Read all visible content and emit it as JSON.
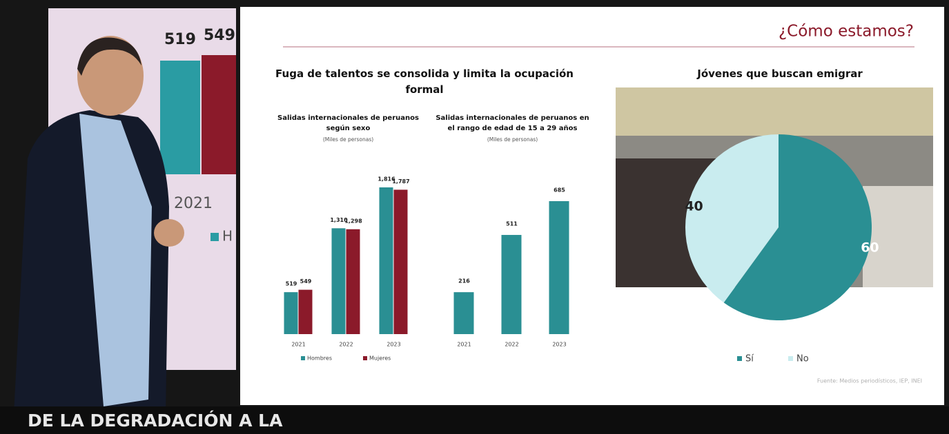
{
  "background": {
    "labels": [
      "519",
      "549"
    ],
    "year": "2021",
    "legend": "H"
  },
  "slide": {
    "heading": "¿Cómo estamos?",
    "title": "Fuga de talentos se consolida y limita la ocupación formal",
    "source": "Fuente: Medios periodísticos, IEP, INEI"
  },
  "chart_data": [
    {
      "type": "bar",
      "title": "Salidas internacionales de peruanos según sexo",
      "subtitle": "(Miles de personas)",
      "categories": [
        "2021",
        "2022",
        "2023"
      ],
      "series": [
        {
          "name": "Hombres",
          "color": "#2a8f93",
          "values": [
            519,
            1310,
            1816
          ],
          "value_labels": [
            "519",
            "1,310",
            "1,816"
          ]
        },
        {
          "name": "Mujeres",
          "color": "#8b1a2a",
          "values": [
            549,
            1298,
            1787
          ],
          "value_labels": [
            "549",
            "1,298",
            "1,787"
          ]
        }
      ]
    },
    {
      "type": "bar",
      "title": "Salidas internacionales de peruanos en el rango de edad de 15 a 29 años",
      "subtitle": "(Miles de personas)",
      "categories": [
        "2021",
        "2022",
        "2023"
      ],
      "values": [
        216,
        511,
        685
      ],
      "color": "#2a8f93"
    },
    {
      "type": "pie",
      "title": "Jóvenes que buscan emigrar",
      "categories": [
        "Sí",
        "No"
      ],
      "values": [
        60,
        40
      ],
      "colors": [
        "#2a8f93",
        "#c9ecef"
      ]
    }
  ],
  "overlay": {
    "caption": "DE LA DEGRADACIÓN A LA"
  }
}
